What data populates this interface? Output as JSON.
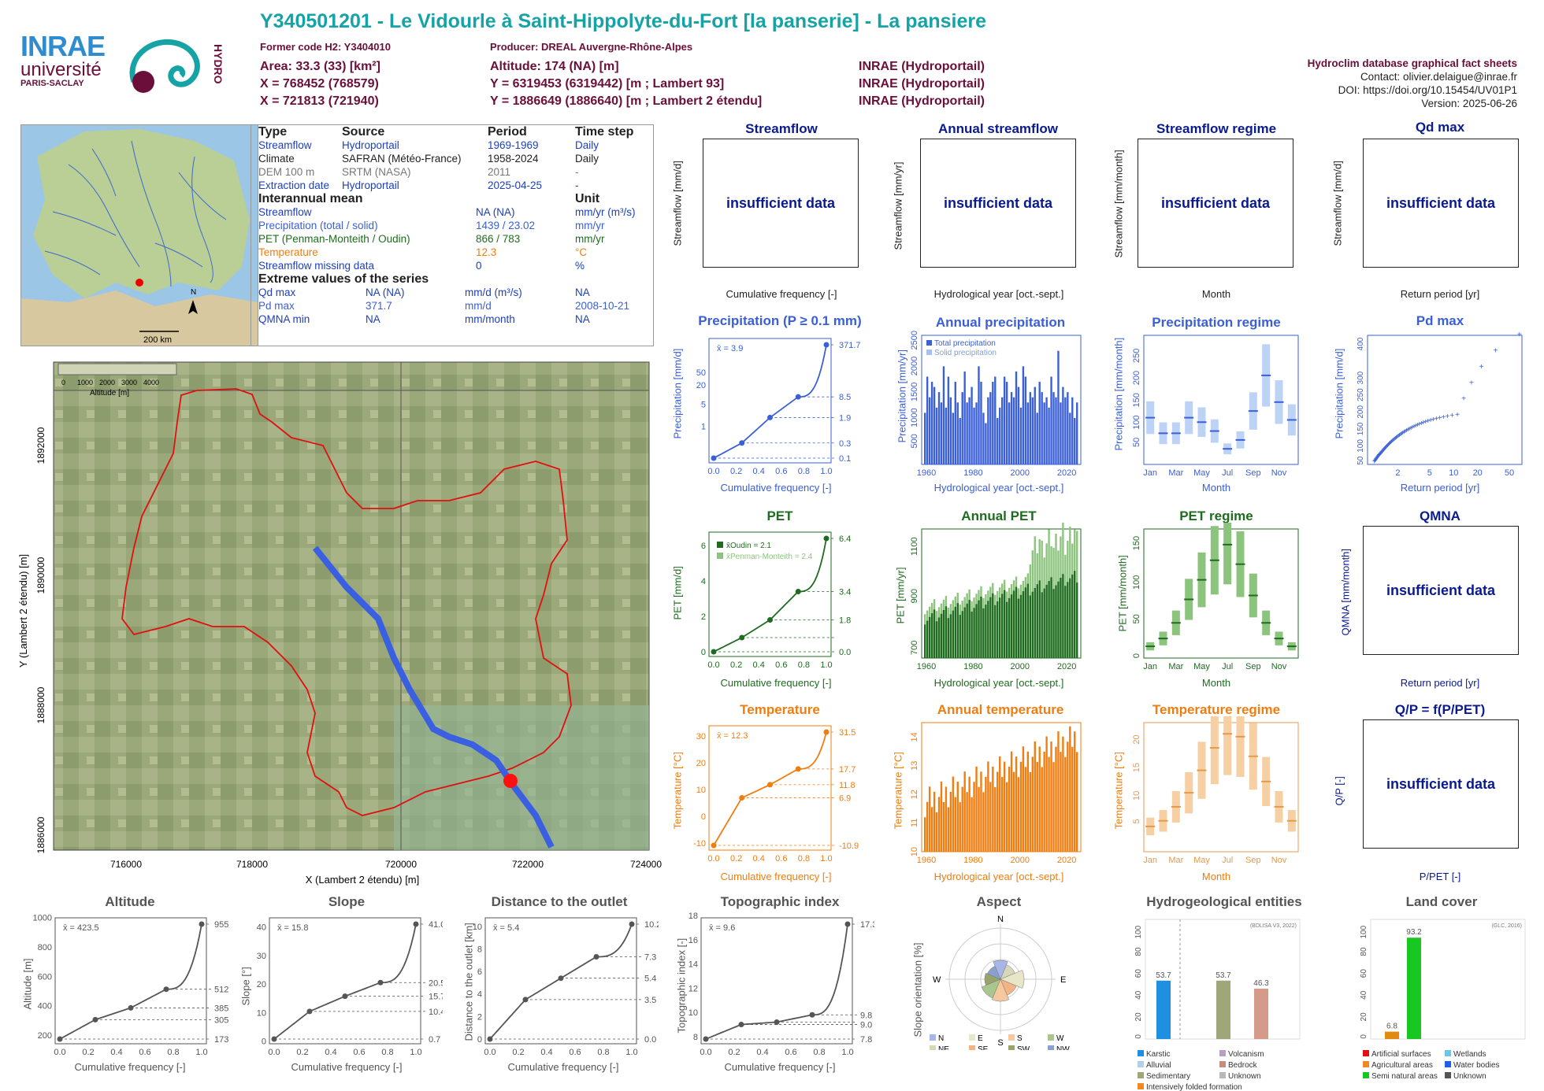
{
  "header": {
    "title": "Y340501201 - Le Vidourle à Saint-Hippolyte-du-Fort [la panserie] - La pansiere",
    "former_code": "Former code H2: Y3404010",
    "producer": "Producer: DREAL Auvergne-Rhône-Alpes",
    "area": "Area: 33.3 (33) [km²]",
    "x_l93": "X = 768452 (768579)",
    "x_l2": "X = 721813 (721940)",
    "altitude": "Altitude: 174 (NA) [m]",
    "y_l93": "Y = 6319453 (6319442) [m ; Lambert 93]",
    "y_l2": "Y = 1886649 (1886640) [m ; Lambert 2 étendu]",
    "inrae1": "INRAE (Hydroportail)",
    "inrae2": "INRAE (Hydroportail)",
    "inrae3": "INRAE (Hydroportail)",
    "db_title": "Hydroclim database graphical fact sheets",
    "contact": "Contact: olivier.delaigue@inrae.fr",
    "doi": "DOI: https://doi.org/10.15454/UV01P1",
    "version": "Version: 2025-06-26",
    "logo_inrae": "INRAE",
    "logo_univ": "université",
    "logo_paris": "PARIS-SACLAY",
    "logo_hydro": "HYDRO"
  },
  "info_table": {
    "h": [
      "Type",
      "Source",
      "Period",
      "Time step"
    ],
    "rows": [
      [
        "Streamflow",
        "Hydroportail",
        "1969-1969",
        "Daily"
      ],
      [
        "Climate",
        "SAFRAN (Météo-France)",
        "1958-2024",
        "Daily"
      ],
      [
        "DEM 100 m",
        "SRTM (NASA)",
        "2011",
        "-"
      ],
      [
        "Extraction date",
        "Hydroportail",
        "2025-04-25",
        "-"
      ]
    ],
    "mean_title": "Interannual mean",
    "unit_title": "Unit",
    "means": [
      [
        "Streamflow",
        "NA (NA)",
        "mm/yr (m³/s)"
      ],
      [
        "Precipitation (total / solid)",
        "1439 / 23.02",
        "mm/yr"
      ],
      [
        "PET (Penman-Monteith / Oudin)",
        "866 / 783",
        "mm/yr"
      ],
      [
        "Temperature",
        "12.3",
        "°C"
      ],
      [
        "Streamflow missing data",
        "0",
        "%"
      ]
    ],
    "extreme_title": "Extreme values of the series",
    "extremes": [
      [
        "Qd max",
        "NA (NA)",
        "mm/d (m³/s)",
        "NA"
      ],
      [
        "Pd max",
        "371.7",
        "mm/d",
        "2008-10-21"
      ],
      [
        "QMNA min",
        "NA",
        "mm/month",
        "NA"
      ]
    ]
  },
  "map_small": {
    "scale": "200 km",
    "north": "N"
  },
  "dem_map": {
    "legend_ticks": [
      "0",
      "1000",
      "2000",
      "3000",
      "4000"
    ],
    "legend_title": "Altitude [m]",
    "xticks": [
      "716000",
      "718000",
      "720000",
      "722000",
      "724000"
    ],
    "yticks": [
      "1892000",
      "1890000",
      "1888000",
      "1886000"
    ],
    "xlabel": "X (Lambert 2 étendu) [m]",
    "ylabel": "Y (Lambert 2 étendu) [m]"
  },
  "insufficient": "insufficient data",
  "row1": {
    "streamflow": {
      "title": "Streamflow",
      "ylabel": "Streamflow [mm/d]",
      "xlabel": "Cumulative frequency [-]"
    },
    "annual_streamflow": {
      "title": "Annual streamflow",
      "ylabel": "Streamflow [mm/yr]",
      "xlabel": "Hydrological year [oct.-sept.]"
    },
    "regime": {
      "title": "Streamflow regime",
      "ylabel": "Streamflow [mm/month]",
      "xlabel": "Month"
    },
    "qmax": {
      "title": "Qd  max",
      "ylabel": "Streamflow [mm/d]",
      "xlabel": "Return period [yr]"
    }
  },
  "row2": {
    "precip": {
      "title": "Precipitation (P ≥ 0.1 mm)",
      "ylabel": "Precipitation [mm/d]",
      "xlabel": "Cumulative frequency [-]",
      "mean": "x̄ = 3.9"
    },
    "annual_precip": {
      "title": "Annual precipitation",
      "ylabel": "Precipitation [mm/yr]",
      "xlabel": "Hydrological year [oct.-sept.]",
      "legend1": "Total precipitation",
      "legend2": "Solid precipitation"
    },
    "precip_regime": {
      "title": "Precipitation regime",
      "ylabel": "Precipitation [mm/month]",
      "xlabel": "Month"
    },
    "pmax": {
      "title": "Pd  max",
      "ylabel": "Precipitation [mm/d]",
      "xlabel": "Return period [yr]"
    }
  },
  "row3": {
    "pet": {
      "title": "PET",
      "ylabel": "PET [mm/d]",
      "xlabel": "Cumulative frequency [-]",
      "leg1": "x̄Oudin = 2.1",
      "leg2": "x̄Penman-Monteith = 2.4"
    },
    "annual_pet": {
      "title": "Annual PET",
      "ylabel": "PET [mm/yr]",
      "xlabel": "Hydrological year [oct.-sept.]"
    },
    "pet_regime": {
      "title": "PET regime",
      "ylabel": "PET [mm/month]",
      "xlabel": "Month"
    },
    "qmna": {
      "title": "QMNA",
      "ylabel": "QMNA [mm/month]",
      "xlabel": "Return period [yr]"
    }
  },
  "row4": {
    "temp": {
      "title": "Temperature",
      "ylabel": "Temperature [°C]",
      "xlabel": "Cumulative frequency [-]",
      "mean": "x̄ = 12.3"
    },
    "annual_temp": {
      "title": "Annual temperature",
      "ylabel": "Temperature [°C]",
      "xlabel": "Hydrological year [oct.-sept.]"
    },
    "temp_regime": {
      "title": "Temperature regime",
      "ylabel": "Temperature [°C]",
      "xlabel": "Month"
    },
    "qp": {
      "title": "Q/P = f(P/PET)",
      "ylabel": "Q/P [-]",
      "xlabel": "P/PET [-]"
    }
  },
  "row5": {
    "alt": {
      "title": "Altitude",
      "ylabel": "Altitude [m]",
      "xlabel": "Cumulative frequency [-]",
      "mean": "x̄ = 423.5"
    },
    "slope": {
      "title": "Slope",
      "ylabel": "Slope [°]",
      "xlabel": "Cumulative frequency [-]",
      "mean": "x̄ = 15.8"
    },
    "dist": {
      "title": "Distance to the outlet",
      "ylabel": "Distance to the outlet [km]",
      "xlabel": "Cumulative frequency [-]",
      "mean": "x̄ = 5.4"
    },
    "topo": {
      "title": "Topographic index",
      "ylabel": "Topographic index [-]",
      "xlabel": "Cumulative frequency [-]",
      "mean": "x̄ = 9.6"
    },
    "aspect": {
      "title": "Aspect",
      "ylabel": "Slope orientation [%]",
      "legend": [
        "N",
        "E",
        "S",
        "W",
        "NE",
        "SE",
        "SW",
        "NW"
      ]
    },
    "hydrogeo": {
      "title": "Hydrogeological entities",
      "ylabel": "Area [%]",
      "source": "(BDLISA V3, 2022)",
      "legend": [
        "Karstic",
        "Volcanism",
        "Alluvial",
        "Bedrock",
        "Sedimentary",
        "Unknown",
        "Intensively folded formation"
      ]
    },
    "landcover": {
      "title": "Land cover",
      "ylabel": "Area [%]",
      "source": "(GLC, 2016)",
      "legend": [
        "Artificial surfaces",
        "Wetlands",
        "Agricultural areas",
        "Water bodies",
        "Semi natural areas",
        "Unknown"
      ]
    }
  },
  "chart_data": [
    {
      "type": "line",
      "title": "Precipitation (P ≥ 0.1 mm)",
      "xlabel": "Cumulative frequency [-]",
      "ylabel": "Precipitation [mm/d]",
      "x": [
        0,
        0.25,
        0.5,
        0.75,
        1.0
      ],
      "y": [
        0.1,
        0.3,
        1.9,
        8.5,
        371.7
      ],
      "right_ticks": [
        "371.7",
        "8.5",
        "1.9",
        "0.3",
        "0.1"
      ],
      "mean": 3.9,
      "yscale": "log"
    },
    {
      "type": "bar",
      "title": "Annual precipitation",
      "xlabel": "Hydrological year [oct.-sept.]",
      "ylabel": "Precipitation [mm/yr]",
      "xlim": [
        1959,
        2024
      ],
      "ylim": [
        0,
        2500
      ],
      "series": [
        {
          "name": "Total precipitation",
          "values": [
            1000,
            1700,
            1300,
            1600,
            1500,
            1100,
            1400,
            1200,
            1900,
            1100,
            1700,
            1300,
            1000,
            1600,
            1200,
            900,
            1400,
            1800,
            1200,
            1300,
            1500,
            1100,
            1200,
            1900,
            1600,
            1000,
            800,
            1300,
            1400,
            1600,
            1700,
            900,
            1100,
            1300,
            1700,
            1600,
            1200,
            1400,
            1300,
            1800,
            1500,
            1100,
            1900,
            1700,
            1200,
            1400,
            1300,
            1500,
            1000,
            1600,
            1400,
            1200,
            1300,
            1100,
            1700,
            1400,
            1300,
            2200,
            1200,
            1500,
            1300,
            1400,
            1000,
            1300,
            900,
            1200
          ]
        }
      ]
    },
    {
      "type": "bar",
      "title": "Precipitation regime",
      "xlabel": "Month",
      "ylabel": "Precipitation [mm/month]",
      "categories": [
        "Jan",
        "Feb",
        "Mar",
        "Apr",
        "May",
        "Jun",
        "Jul",
        "Aug",
        "Sep",
        "Oct",
        "Nov",
        "Dec"
      ],
      "values": [
        105,
        70,
        70,
        105,
        95,
        75,
        35,
        55,
        120,
        200,
        140,
        100
      ]
    },
    {
      "type": "scatter",
      "title": "Pd  max",
      "xlabel": "Return period [yr]",
      "ylabel": "Precipitation [mm/d]",
      "xlim": [
        1,
        60
      ],
      "ylim": [
        40,
        420
      ]
    },
    {
      "type": "line",
      "title": "PET",
      "xlabel": "Cumulative frequency [-]",
      "ylabel": "PET [mm/d]",
      "x": [
        0,
        0.25,
        0.5,
        0.75,
        1.0
      ],
      "y": [
        0.0,
        0.8,
        1.8,
        3.4,
        6.4
      ],
      "right_ticks": [
        "6.4",
        "3.4",
        "1.8",
        "0.0"
      ],
      "mean_oudin": 2.1,
      "mean_pm": 2.4
    },
    {
      "type": "bar",
      "title": "Annual PET",
      "xlabel": "Hydrological year [oct.-sept.]",
      "ylabel": "PET [mm/yr]",
      "xlim": [
        1959,
        2024
      ],
      "ylim": [
        650,
        1150
      ]
    },
    {
      "type": "bar",
      "title": "PET regime",
      "xlabel": "Month",
      "ylabel": "PET [mm/month]",
      "categories": [
        "Jan",
        "Feb",
        "Mar",
        "Apr",
        "May",
        "Jun",
        "Jul",
        "Aug",
        "Sep",
        "Oct",
        "Nov",
        "Dec"
      ],
      "values": [
        15,
        25,
        45,
        75,
        100,
        125,
        145,
        120,
        80,
        45,
        25,
        15
      ]
    },
    {
      "type": "line",
      "title": "Temperature",
      "xlabel": "Cumulative frequency [-]",
      "ylabel": "Temperature [°C]",
      "x": [
        0,
        0.25,
        0.5,
        0.75,
        1.0
      ],
      "y": [
        -10.9,
        6.9,
        11.8,
        17.7,
        31.5
      ],
      "right_ticks": [
        "31.5",
        "17.7",
        "11.8",
        "6.9",
        "-10.9"
      ],
      "mean": 12.3
    },
    {
      "type": "bar",
      "title": "Annual temperature",
      "xlabel": "Hydrological year [oct.-sept.]",
      "ylabel": "Temperature [°C]",
      "xlim": [
        1959,
        2024
      ],
      "ylim": [
        10,
        14.5
      ]
    },
    {
      "type": "bar",
      "title": "Temperature regime",
      "xlabel": "Month",
      "ylabel": "Temperature [°C]",
      "categories": [
        "Jan",
        "Feb",
        "Mar",
        "Apr",
        "May",
        "Jun",
        "Jul",
        "Aug",
        "Sep",
        "Oct",
        "Nov",
        "Dec"
      ],
      "values": [
        4.5,
        5.5,
        8,
        10.5,
        14.5,
        18.5,
        21,
        20.5,
        17,
        12.5,
        8,
        5.5
      ]
    },
    {
      "type": "line",
      "title": "Altitude",
      "x": [
        0,
        0.25,
        0.5,
        0.75,
        1.0
      ],
      "y": [
        173,
        305,
        385,
        512,
        955
      ],
      "right_ticks": [
        "955",
        "512",
        "385",
        "305",
        "173"
      ]
    },
    {
      "type": "line",
      "title": "Slope",
      "x": [
        0,
        0.25,
        0.5,
        0.75,
        1.0
      ],
      "y": [
        0.7,
        10.4,
        15.7,
        20.5,
        41.0
      ],
      "right_ticks": [
        "41.0",
        "20.5",
        "15.7",
        "10.4",
        "0.7"
      ]
    },
    {
      "type": "line",
      "title": "Distance to the outlet",
      "x": [
        0,
        0.25,
        0.5,
        0.75,
        1.0
      ],
      "y": [
        0.0,
        3.5,
        5.4,
        7.3,
        10.2
      ],
      "right_ticks": [
        "10.2",
        "7.3",
        "5.4",
        "3.5",
        "0.0"
      ]
    },
    {
      "type": "line",
      "title": "Topographic index",
      "x": [
        0,
        0.25,
        0.5,
        0.75,
        1.0
      ],
      "y": [
        7.8,
        9.0,
        9.2,
        9.8,
        17.3
      ],
      "right_ticks": [
        "17.3",
        "9.8",
        "9.0",
        "7.8"
      ]
    },
    {
      "type": "bar",
      "title": "Hydrogeological entities",
      "categories": [
        "Karstic",
        "Sedimentary",
        "Bedrock"
      ],
      "values": [
        53.7,
        53.7,
        46.3
      ],
      "ylim": [
        0,
        100
      ]
    },
    {
      "type": "bar",
      "title": "Land cover",
      "categories": [
        "Agricultural areas",
        "Semi natural areas"
      ],
      "values": [
        6.8,
        93.2
      ],
      "ylim": [
        0,
        100
      ]
    }
  ],
  "colors": {
    "precip": "#3a5fd6",
    "pet_dark": "#1f6b1f",
    "pet_light": "#8cc47e",
    "temp": "#f07d10",
    "title_teal": "#16a3a6",
    "maroon": "#6b0f3a",
    "navy": "#0a1a8f"
  }
}
